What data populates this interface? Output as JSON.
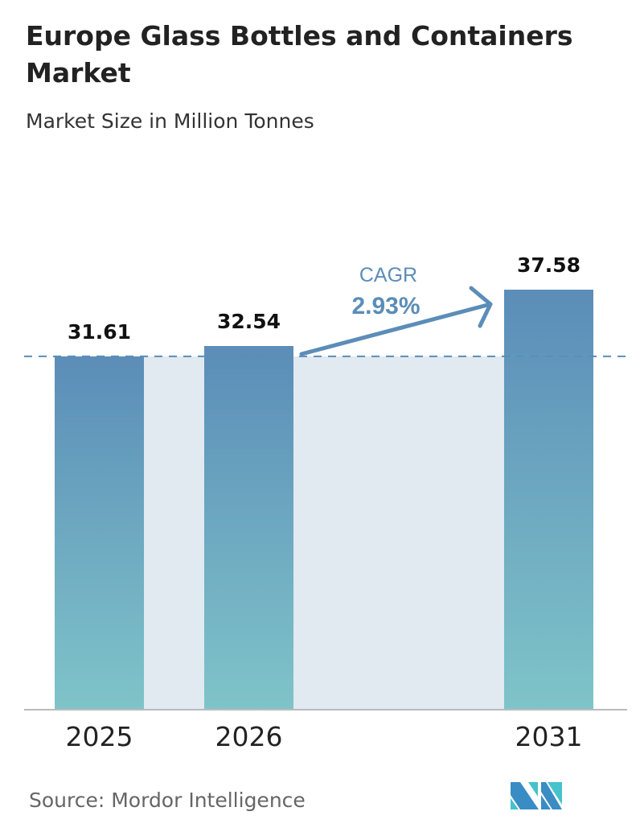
{
  "title": "Europe Glass Bottles and Containers Market",
  "subtitle": "Market Size in Million Tonnes",
  "source": "Source:  Mordor Intelligence",
  "logo_text": "Mordor Intelligence",
  "colors": {
    "bar_top": "#5b8db8",
    "bar_bottom": "#7fc4c9",
    "band": "#e1e9f1",
    "cagr": "#5b8db8"
  },
  "annotation": {
    "label": "CAGR",
    "value": "2.93%"
  },
  "chart_data": {
    "type": "bar",
    "categories": [
      "2025",
      "2026",
      "2031"
    ],
    "values": [
      31.61,
      32.54,
      37.58
    ],
    "value_labels": [
      "31.61",
      "32.54",
      "37.58"
    ],
    "title": "Europe Glass Bottles and Containers Market",
    "ylabel": "Market Size in Million Tonnes",
    "ylim": [
      0,
      37.58
    ],
    "grid": false,
    "legend": "none"
  }
}
